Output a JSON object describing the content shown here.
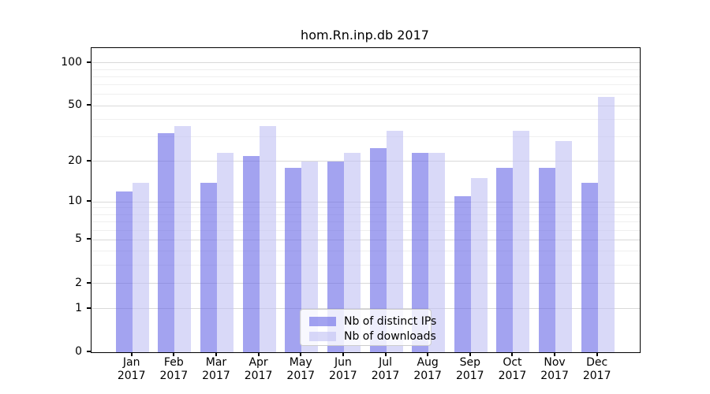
{
  "title": "hom.Rn.inp.db 2017",
  "chart_data": {
    "type": "bar",
    "title": "hom.Rn.inp.db 2017",
    "categories": [
      "Jan",
      "Feb",
      "Mar",
      "Apr",
      "May",
      "Jun",
      "Jul",
      "Aug",
      "Sep",
      "Oct",
      "Nov",
      "Dec"
    ],
    "year": "2017",
    "series": [
      {
        "name": "Nb of distinct IPs",
        "color": "#6666e6",
        "fill": "rgba(102,102,230,0.6)",
        "values": [
          12,
          32,
          14,
          22,
          18,
          20,
          25,
          23,
          11,
          18,
          18,
          14
        ]
      },
      {
        "name": "Nb of downloads",
        "color": "#c0c0f3",
        "fill": "rgba(192,192,243,0.6)",
        "values": [
          14,
          36,
          23,
          36,
          20,
          23,
          33,
          23,
          15,
          33,
          28,
          58
        ]
      }
    ],
    "xlabel": "",
    "ylabel": "",
    "yscale": "log1p",
    "ylim": [
      0,
      127
    ],
    "y_ticks": [
      0,
      1,
      2,
      5,
      10,
      20,
      50,
      100
    ],
    "y_minor_gridlines": [
      3,
      4,
      6,
      7,
      8,
      9,
      30,
      40,
      60,
      70,
      80,
      90
    ],
    "grid": "horizontal",
    "legend_position": "lower center",
    "axis_color": "#000000",
    "major_grid_color": "#d9d9d9",
    "minor_grid_color": "#efefef",
    "background_color": "#ffffff"
  }
}
